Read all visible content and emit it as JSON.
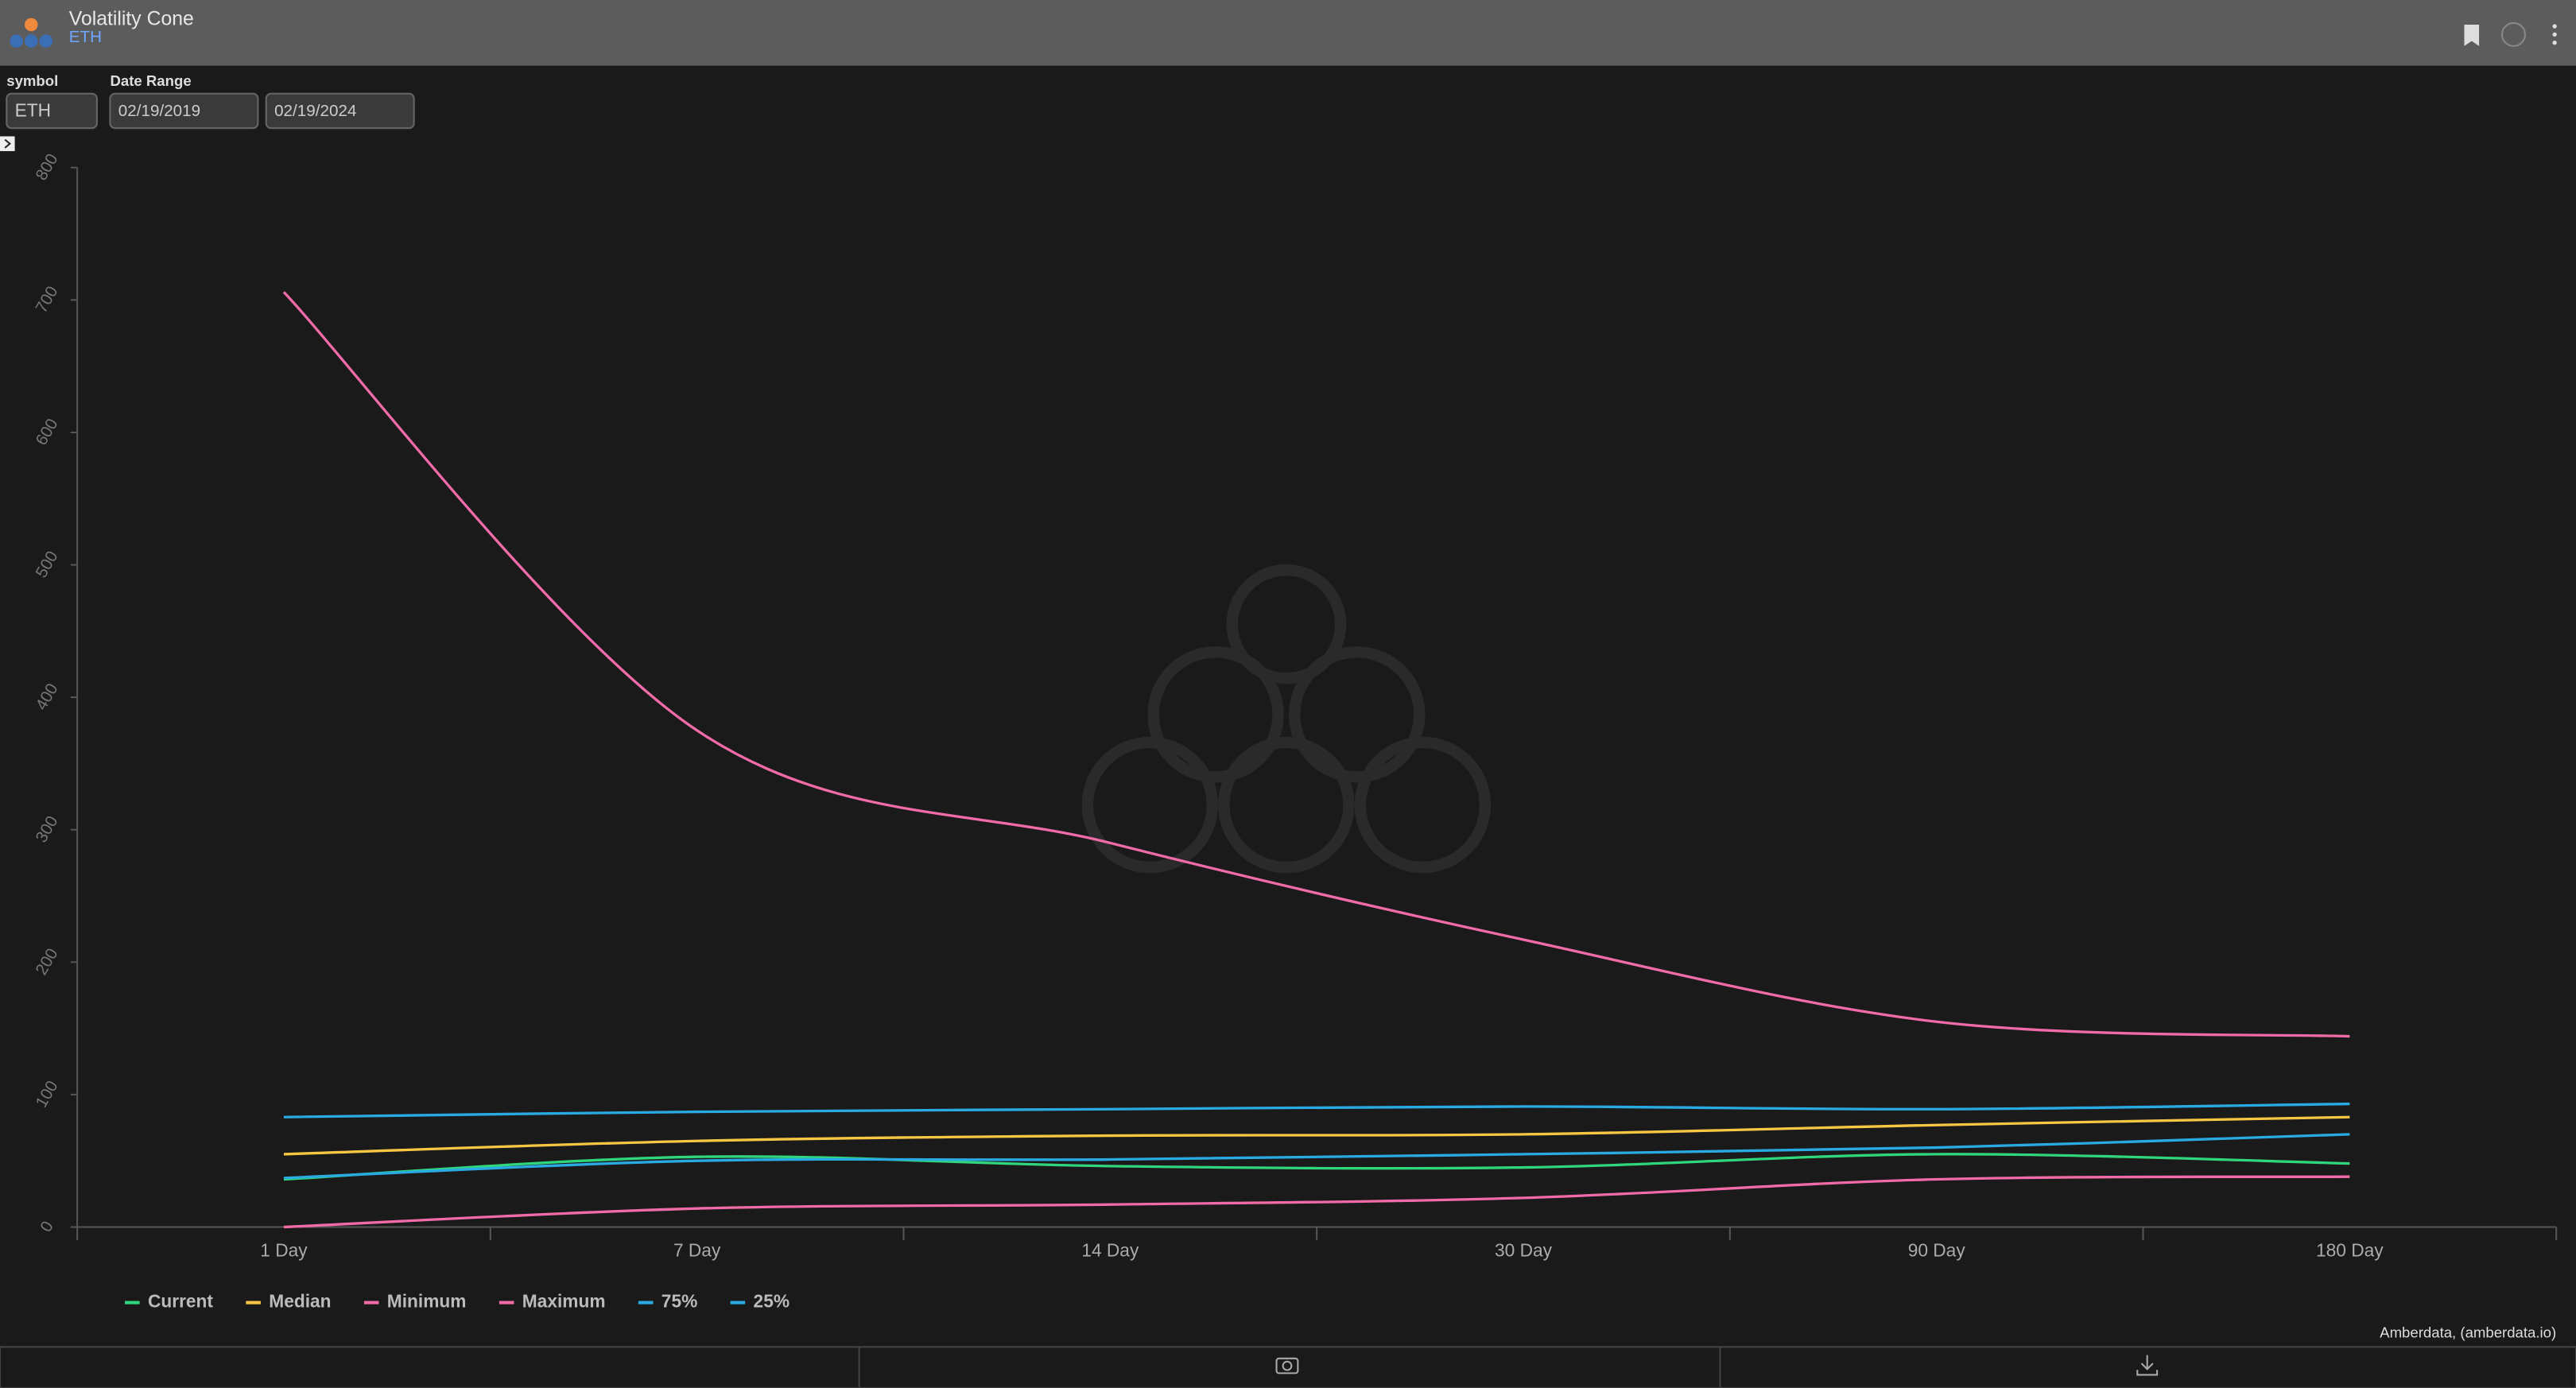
{
  "header": {
    "title": "Volatility Cone",
    "subtitle": "ETH"
  },
  "controls": {
    "symbol_label": "symbol",
    "symbol": "ETH",
    "date_range_label": "Date Range",
    "start_date": "02/19/2019",
    "end_date": "02/19/2024"
  },
  "chart_data": {
    "type": "line",
    "categories": [
      "1 Day",
      "7 Day",
      "14 Day",
      "30 Day",
      "90 Day",
      "180 Day"
    ],
    "series": [
      {
        "name": "Current",
        "color": "#2fd67b",
        "values": [
          36,
          53,
          46,
          45,
          55,
          48
        ]
      },
      {
        "name": "Median",
        "color": "#f7c744",
        "values": [
          55,
          65,
          69,
          70,
          77,
          83
        ]
      },
      {
        "name": "Minimum",
        "color": "#f06ba8",
        "values": [
          0,
          14,
          17,
          22,
          36,
          38
        ]
      },
      {
        "name": "Maximum",
        "color": "#f06ba8",
        "values": [
          706,
          375,
          290,
          217,
          155,
          144
        ]
      },
      {
        "name": "75%",
        "color": "#2aaae2",
        "values": [
          83,
          87,
          89,
          91,
          89,
          93
        ]
      },
      {
        "name": "25%",
        "color": "#2aaae2",
        "values": [
          37,
          50,
          51,
          55,
          60,
          70
        ]
      }
    ],
    "ylim": [
      0,
      800
    ],
    "yticks": [
      0,
      100,
      200,
      300,
      400,
      500,
      600,
      700,
      800
    ],
    "grid": false,
    "legend": "bottom-left"
  },
  "credit": "Amberdata, (amberdata.io)"
}
